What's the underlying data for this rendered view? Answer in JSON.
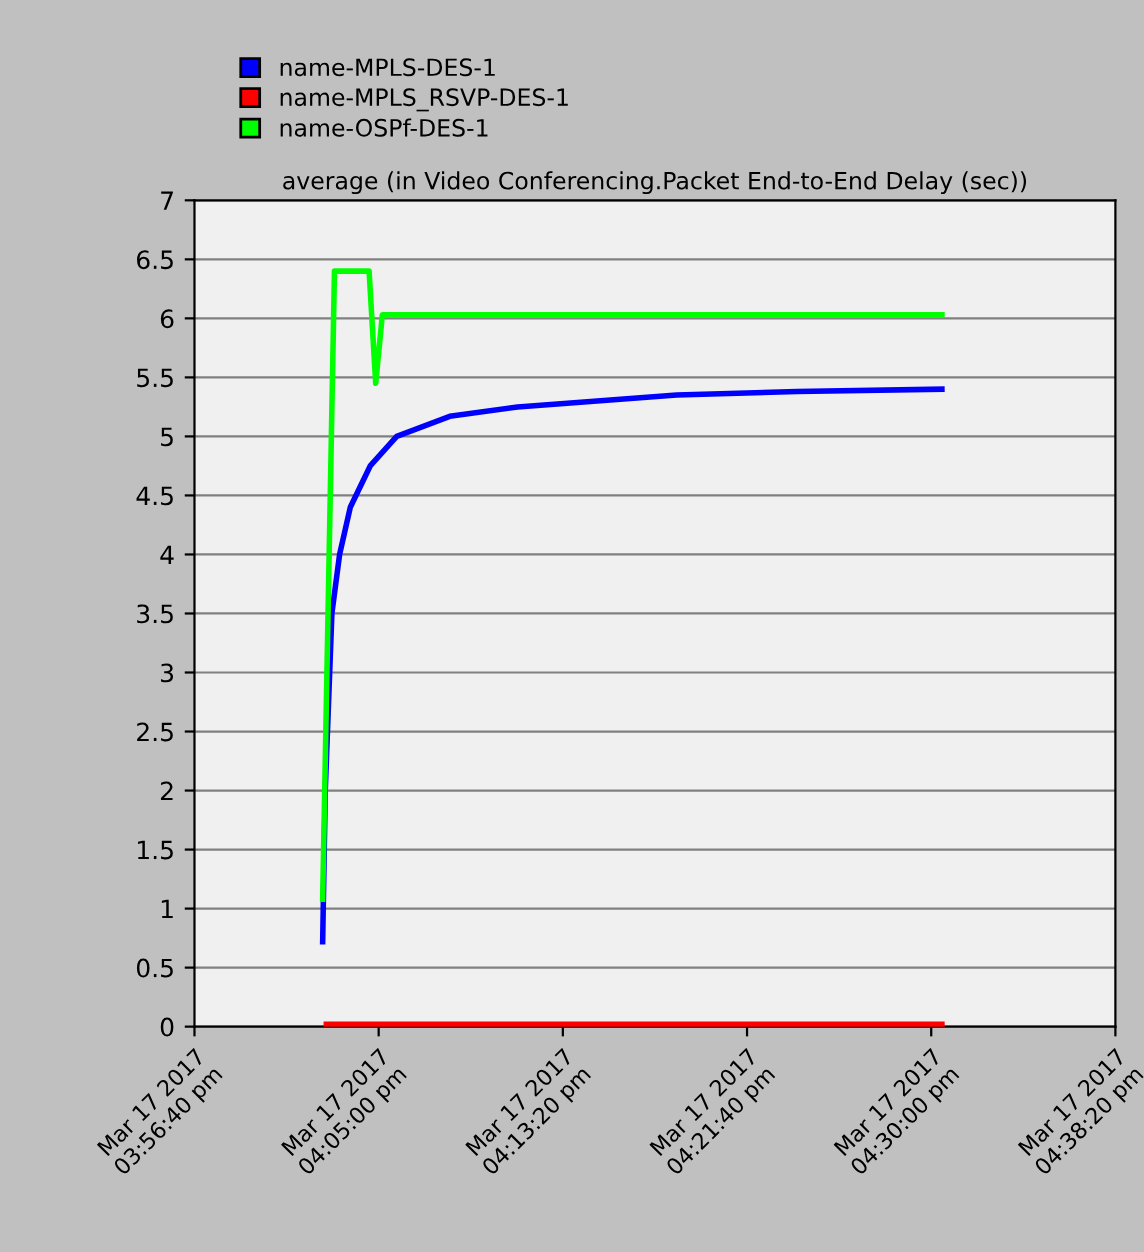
{
  "chart_data": {
    "type": "line",
    "title": "average (in Video Conferencing.Packet End-to-End Delay (sec))",
    "series": [
      {
        "name": "name-MPLS-DES-1",
        "color": "#0000ff",
        "x": [
          "2017-03-17T16:02:28",
          "2017-03-17T16:02:35",
          "2017-03-17T16:02:53",
          "2017-03-17T16:03:14",
          "2017-03-17T16:03:43",
          "2017-03-17T16:04:37",
          "2017-03-17T16:05:49",
          "2017-03-17T16:08:13",
          "2017-03-17T16:11:17",
          "2017-03-17T16:18:29",
          "2017-03-17T16:23:56",
          "2017-03-17T16:30:29"
        ],
        "values": [
          0.72,
          2.0,
          3.5,
          4.0,
          4.4,
          4.75,
          5.0,
          5.17,
          5.25,
          5.35,
          5.38,
          5.4
        ]
      },
      {
        "name": "name-MPLS_RSVP-DES-1",
        "color": "#ff0000",
        "x": [
          "2017-03-17T16:02:38",
          "2017-03-17T16:30:29"
        ],
        "values": [
          0.02,
          0.02
        ]
      },
      {
        "name": "name-OSPf-DES-1",
        "color": "#00ff00",
        "x": [
          "2017-03-17T16:02:28",
          "2017-03-17T16:03:00",
          "2017-03-17T16:04:34",
          "2017-03-17T16:04:52",
          "2017-03-17T16:05:10",
          "2017-03-17T16:30:29"
        ],
        "values": [
          1.08,
          6.4,
          6.4,
          5.45,
          6.03,
          6.03
        ]
      }
    ],
    "xlim": [
      "2017-03-17T15:56:40",
      "2017-03-17T16:38:20"
    ],
    "xticks": [
      {
        "value": "2017-03-17T15:56:40",
        "label": "Mar 17 2017\n03:56:40 pm"
      },
      {
        "value": "2017-03-17T16:05:00",
        "label": "Mar 17 2017\n04:05:00 pm"
      },
      {
        "value": "2017-03-17T16:13:20",
        "label": "Mar 17 2017\n04:13:20 pm"
      },
      {
        "value": "2017-03-17T16:21:40",
        "label": "Mar 17 2017\n04:21:40 pm"
      },
      {
        "value": "2017-03-17T16:30:00",
        "label": "Mar 17 2017\n04:30:00 pm"
      },
      {
        "value": "2017-03-17T16:38:20",
        "label": "Mar 17 2017\n04:38:20 pm"
      }
    ],
    "ylim": [
      0,
      7
    ],
    "yticks": [
      0,
      0.5,
      1,
      1.5,
      2,
      2.5,
      3,
      3.5,
      4,
      4.5,
      5,
      5.5,
      6,
      6.5,
      7
    ],
    "grid": "y",
    "legend": "top",
    "marker": "none",
    "line_style": "solid"
  }
}
